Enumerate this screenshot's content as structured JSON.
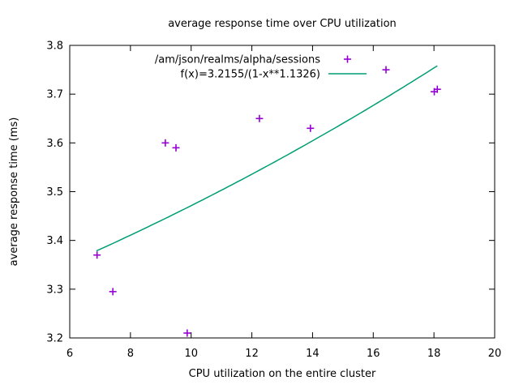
{
  "chart_data": {
    "type": "scatter",
    "title": "average response time over CPU utilization",
    "xlabel": "CPU utilization on the entire cluster",
    "ylabel": "average response time (ms)",
    "xlim": [
      6,
      20
    ],
    "ylim": [
      3.2,
      3.8
    ],
    "x_tick_values": [
      6,
      8,
      10,
      12,
      14,
      16,
      18,
      20
    ],
    "x_tick_labels": [
      "6",
      "8",
      "10",
      "12",
      "14",
      "16",
      "18",
      "20"
    ],
    "y_tick_values": [
      3.2,
      3.3,
      3.4,
      3.5,
      3.6,
      3.7,
      3.8
    ],
    "y_tick_labels": [
      "3.2",
      "3.3",
      "3.4",
      "3.5",
      "3.6",
      "3.7",
      "3.8"
    ],
    "grid": false,
    "background_color": "#ffffff",
    "axis_color": "#000000",
    "legend_position": "top-right-inside",
    "series": [
      {
        "name": "/am/json/realms/alpha/sessions",
        "type": "points",
        "marker": "plus",
        "color": "#9400d3",
        "points": [
          [
            6.9,
            3.37
          ],
          [
            7.42,
            3.295
          ],
          [
            9.15,
            3.6
          ],
          [
            9.5,
            3.59
          ],
          [
            9.87,
            3.21
          ],
          [
            12.25,
            3.65
          ],
          [
            13.93,
            3.63
          ],
          [
            16.42,
            3.75
          ],
          [
            18.01,
            3.705
          ],
          [
            18.11,
            3.71
          ]
        ]
      },
      {
        "name": "f(x)=3.2155/(1-x**1.1326)",
        "type": "line",
        "color": "#009e73",
        "fn": {
          "a": 3.2155,
          "exp": 1.1326,
          "x_scale": 0.01
        },
        "x_range": [
          6.88,
          18.11
        ]
      }
    ]
  }
}
